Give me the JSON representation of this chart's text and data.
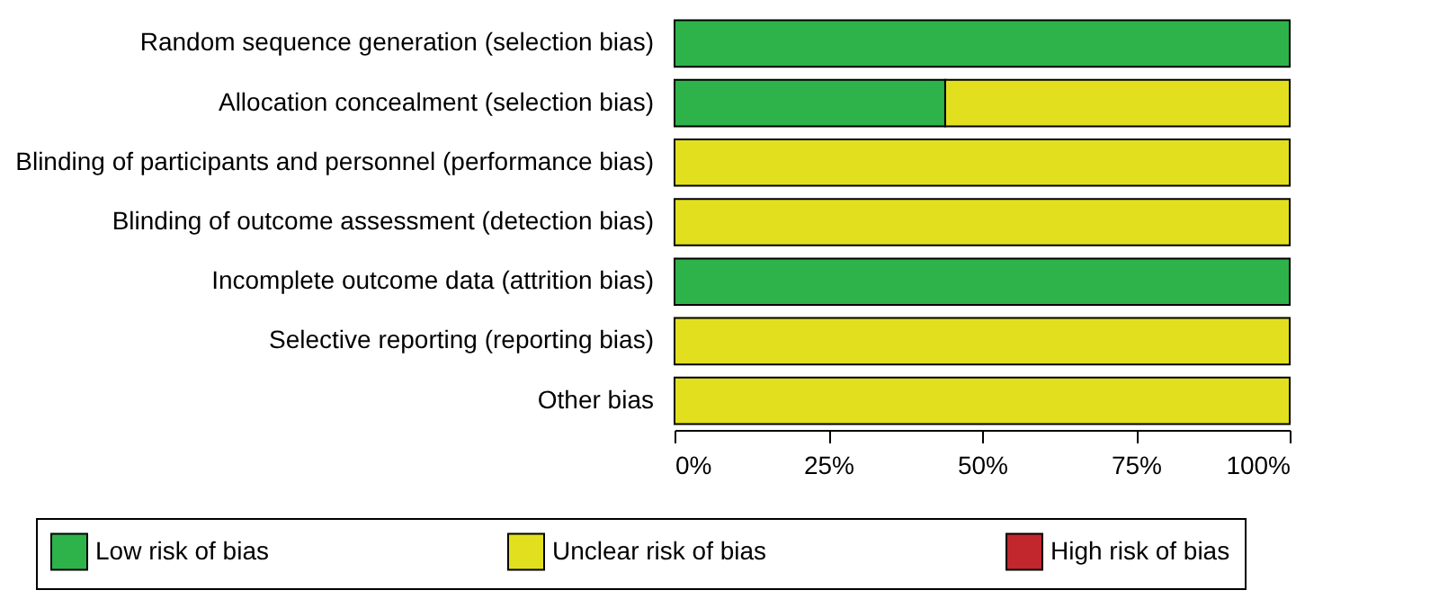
{
  "chart_data": {
    "type": "bar",
    "orientation": "horizontal",
    "stacked": true,
    "categories": [
      "Random sequence generation (selection bias)",
      "Allocation concealment (selection bias)",
      "Blinding of participants and personnel (performance bias)",
      "Blinding of outcome assessment (detection bias)",
      "Incomplete outcome data (attrition bias)",
      "Selective reporting (reporting bias)",
      "Other bias"
    ],
    "series": [
      {
        "name": "Low risk of bias",
        "color": "#2db34a",
        "values": [
          100,
          44,
          0,
          0,
          100,
          0,
          0
        ]
      },
      {
        "name": "Unclear risk of bias",
        "color": "#e2e01e",
        "values": [
          0,
          56,
          100,
          100,
          0,
          100,
          100
        ]
      },
      {
        "name": "High risk of bias",
        "color": "#c1272d",
        "values": [
          0,
          0,
          0,
          0,
          0,
          0,
          0
        ]
      }
    ],
    "xlim": [
      0,
      100
    ],
    "xticks": [
      {
        "value": 0,
        "label": "0%"
      },
      {
        "value": 25,
        "label": "25%"
      },
      {
        "value": 50,
        "label": "50%"
      },
      {
        "value": 75,
        "label": "75%"
      },
      {
        "value": 100,
        "label": "100%"
      }
    ],
    "grid": false,
    "legend": "bottom"
  }
}
